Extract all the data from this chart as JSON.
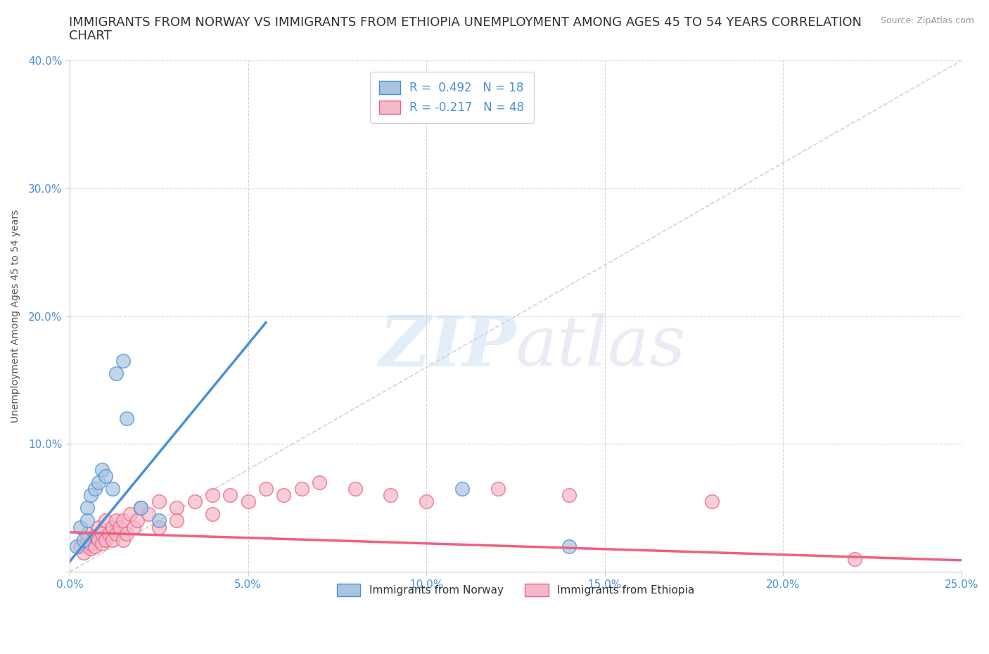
{
  "title_line1": "IMMIGRANTS FROM NORWAY VS IMMIGRANTS FROM ETHIOPIA UNEMPLOYMENT AMONG AGES 45 TO 54 YEARS CORRELATION",
  "title_line2": "CHART",
  "source_text": "Source: ZipAtlas.com",
  "ylabel": "Unemployment Among Ages 45 to 54 years",
  "xlim": [
    0.0,
    0.25
  ],
  "ylim": [
    0.0,
    0.4
  ],
  "xticks": [
    0.0,
    0.05,
    0.1,
    0.15,
    0.2,
    0.25
  ],
  "yticks": [
    0.0,
    0.1,
    0.2,
    0.3,
    0.4
  ],
  "xticklabels": [
    "0.0%",
    "5.0%",
    "10.0%",
    "15.0%",
    "20.0%",
    "25.0%"
  ],
  "yticklabels": [
    "",
    "10.0%",
    "20.0%",
    "30.0%",
    "40.0%"
  ],
  "norway_R": 0.492,
  "norway_N": 18,
  "ethiopia_R": -0.217,
  "ethiopia_N": 48,
  "norway_color": "#a8c4e0",
  "ethiopia_color": "#f4b8c8",
  "norway_line_color": "#4a90d9",
  "ethiopia_line_color": "#f06080",
  "norway_scatter_x": [
    0.002,
    0.003,
    0.004,
    0.005,
    0.005,
    0.006,
    0.007,
    0.008,
    0.009,
    0.01,
    0.012,
    0.013,
    0.015,
    0.016,
    0.02,
    0.025,
    0.11,
    0.14
  ],
  "norway_scatter_y": [
    0.02,
    0.035,
    0.025,
    0.05,
    0.04,
    0.06,
    0.065,
    0.07,
    0.08,
    0.075,
    0.065,
    0.155,
    0.165,
    0.12,
    0.05,
    0.04,
    0.065,
    0.02
  ],
  "ethiopia_scatter_x": [
    0.003,
    0.004,
    0.005,
    0.005,
    0.006,
    0.006,
    0.007,
    0.007,
    0.008,
    0.008,
    0.009,
    0.009,
    0.01,
    0.01,
    0.011,
    0.012,
    0.012,
    0.013,
    0.013,
    0.014,
    0.015,
    0.015,
    0.016,
    0.017,
    0.018,
    0.019,
    0.02,
    0.022,
    0.025,
    0.025,
    0.03,
    0.03,
    0.035,
    0.04,
    0.04,
    0.045,
    0.05,
    0.055,
    0.06,
    0.065,
    0.07,
    0.08,
    0.09,
    0.1,
    0.12,
    0.14,
    0.18,
    0.22
  ],
  "ethiopia_scatter_y": [
    0.02,
    0.015,
    0.025,
    0.03,
    0.018,
    0.022,
    0.02,
    0.028,
    0.025,
    0.035,
    0.022,
    0.03,
    0.025,
    0.04,
    0.03,
    0.035,
    0.025,
    0.04,
    0.03,
    0.035,
    0.025,
    0.04,
    0.03,
    0.045,
    0.035,
    0.04,
    0.05,
    0.045,
    0.055,
    0.035,
    0.05,
    0.04,
    0.055,
    0.06,
    0.045,
    0.06,
    0.055,
    0.065,
    0.06,
    0.065,
    0.07,
    0.065,
    0.06,
    0.055,
    0.065,
    0.06,
    0.055,
    0.01
  ],
  "norway_trendline_x": [
    0.0,
    0.055
  ],
  "norway_trendline_y": [
    0.008,
    0.195
  ],
  "ethiopia_trendline_x": [
    0.0,
    0.25
  ],
  "ethiopia_trendline_y": [
    0.031,
    0.009
  ],
  "watermark_zip": "ZIP",
  "watermark_atlas": "atlas",
  "legend_box_color_norway": "#a8c4e0",
  "legend_box_color_ethiopia": "#f4b8c8",
  "title_fontsize": 13,
  "axis_label_fontsize": 10,
  "tick_fontsize": 11,
  "tick_color": "#4a90d9",
  "background_color": "#ffffff",
  "grid_color": "#d0d0d0",
  "diagonal_line_color": "#c0c0c0"
}
